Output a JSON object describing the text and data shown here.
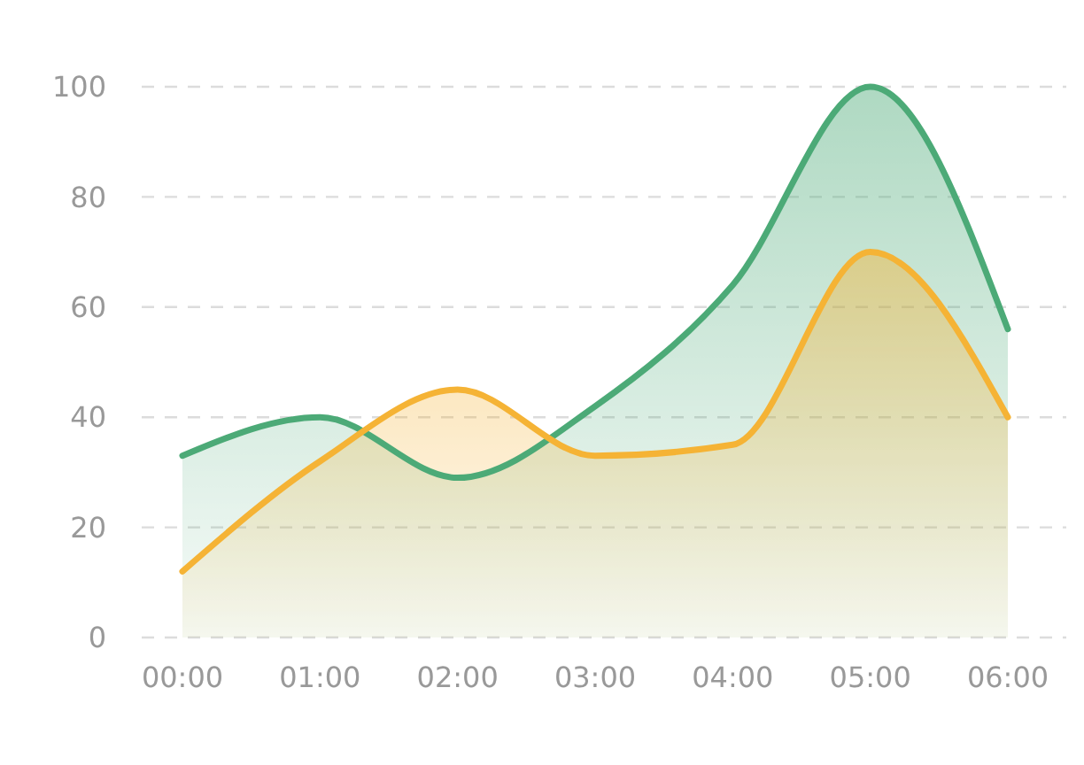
{
  "chart_data": {
    "type": "area",
    "categories": [
      "00:00",
      "01:00",
      "02:00",
      "03:00",
      "04:00",
      "05:00",
      "06:00"
    ],
    "series": [
      {
        "color": "#4caa77",
        "values": [
          33,
          40,
          29,
          42,
          64,
          100,
          56
        ]
      },
      {
        "color": "#f5b335",
        "values": [
          12,
          32,
          45,
          33,
          35,
          70,
          40
        ]
      }
    ],
    "ylim": [
      0,
      100
    ],
    "yticks": [
      0,
      20,
      40,
      60,
      80,
      100
    ],
    "grid": "y"
  }
}
